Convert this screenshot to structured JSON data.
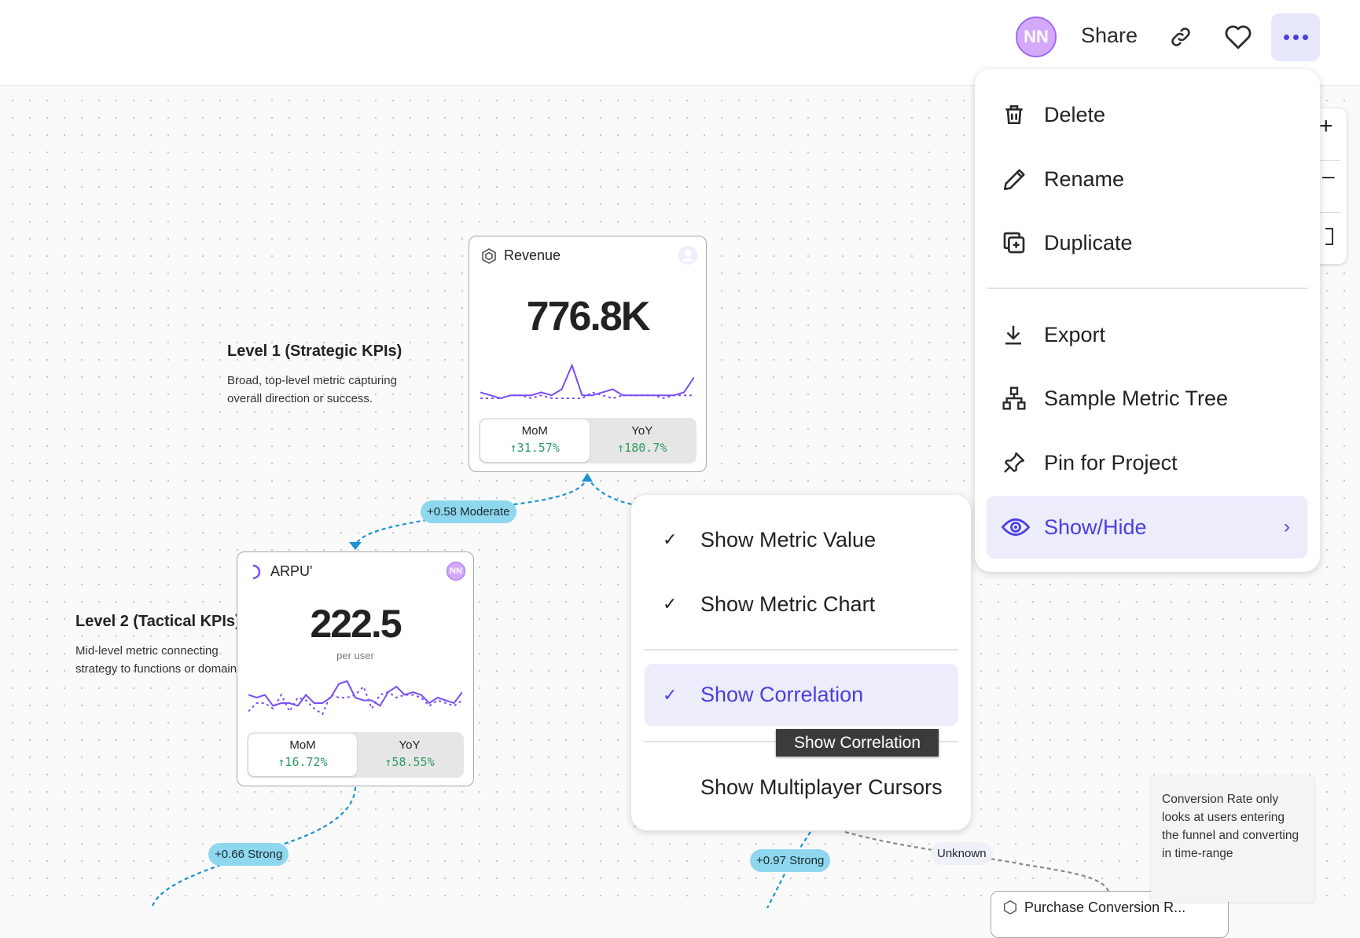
{
  "header": {
    "avatar_initials": "NN",
    "share_label": "Share",
    "icons": [
      "link-icon",
      "heart-icon",
      "more-icon"
    ]
  },
  "main_menu": {
    "items": [
      {
        "label": "Delete",
        "icon": "trash-icon"
      },
      {
        "label": "Rename",
        "icon": "pencil-icon"
      },
      {
        "label": "Duplicate",
        "icon": "duplicate-icon"
      },
      {
        "label": "Export",
        "icon": "download-icon"
      },
      {
        "label": "Sample Metric Tree",
        "icon": "tree-icon"
      },
      {
        "label": "Pin for Project",
        "icon": "pin-icon"
      },
      {
        "label": "Show/Hide",
        "icon": "eye-icon",
        "active": true
      }
    ]
  },
  "submenu": {
    "items": [
      {
        "label": "Show Metric Value",
        "checked": true
      },
      {
        "label": "Show Metric Chart",
        "checked": true
      },
      {
        "label": "Show Correlation",
        "checked": true,
        "active": true
      },
      {
        "label": "Show Multiplayer Cursors",
        "checked": false
      }
    ],
    "tooltip": "Show Correlation"
  },
  "levels": [
    {
      "title": "Level 1 (Strategic KPIs)",
      "desc1": "Broad, top-level metric capturing",
      "desc2": "overall direction or success."
    },
    {
      "title": "Level 2 (Tactical KPIs)",
      "desc1": "Mid-level metric connecting",
      "desc2": "strategy to functions or domains."
    }
  ],
  "cards": {
    "revenue": {
      "title": "Revenue",
      "value": "776.8K",
      "mom_label": "MoM",
      "mom": "31.57%",
      "yoy_label": "YoY",
      "yoy": "180.7%",
      "spark": [
        4,
        3,
        2,
        3,
        3,
        3,
        4,
        3,
        5,
        13,
        3,
        3,
        4,
        5,
        3,
        3,
        3,
        3,
        3,
        3,
        4,
        9
      ],
      "spark_prev": [
        2,
        2,
        2,
        3,
        3,
        2,
        3,
        2,
        2,
        2,
        2,
        4,
        3,
        2,
        3,
        3,
        3,
        3,
        2,
        3,
        3,
        3
      ]
    },
    "arpu": {
      "title": "ARPU'",
      "value": "222.5",
      "unit": "per user",
      "avatar": "NN",
      "mom_label": "MoM",
      "mom": "16.72%",
      "yoy_label": "YoY",
      "yoy": "58.55%",
      "spark": [
        6,
        5,
        6,
        2,
        3,
        3,
        2,
        6,
        3,
        3,
        5,
        10,
        11,
        5,
        4,
        4,
        2,
        7,
        9,
        6,
        7,
        6,
        3,
        5,
        4,
        3,
        7
      ],
      "spark_prev": [
        0,
        3,
        3,
        1,
        6,
        0,
        5,
        4,
        1,
        -1,
        6,
        5,
        5,
        6,
        9,
        1,
        6,
        7,
        5,
        6,
        6,
        5,
        2,
        4,
        3,
        2,
        4
      ]
    },
    "bottom": {
      "title": "Purchase Conversion R..."
    }
  },
  "edges": [
    {
      "label": "+0.58 Moderate",
      "type": "correlation"
    },
    {
      "label": "+0.66 Strong",
      "type": "correlation"
    },
    {
      "label": "+0.97 Strong",
      "type": "correlation"
    },
    {
      "label": "Unknown",
      "type": "unknown"
    }
  ],
  "note": "Conversion Rate only looks at users entering the funnel and converting in time-range",
  "colors": {
    "accent": "#4a3fe0",
    "edge": "#1a93d2",
    "positive": "#2f9a63",
    "spark": "#7a4df5",
    "pill": "#8ed7ee"
  }
}
